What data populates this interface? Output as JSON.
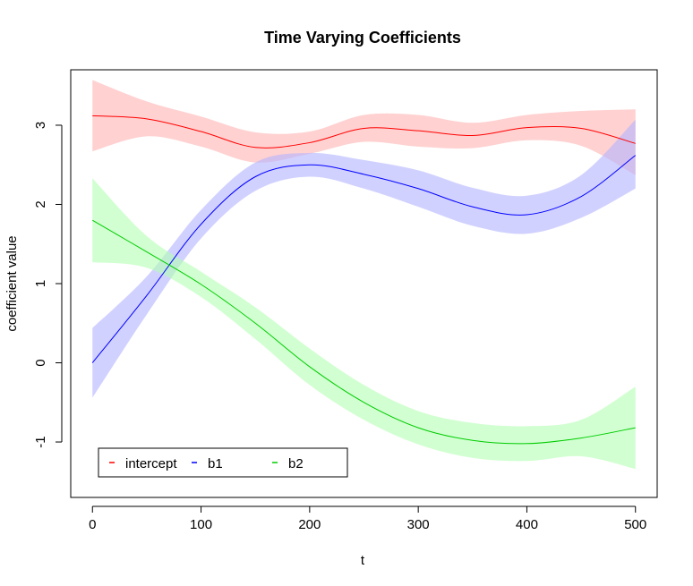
{
  "chart_data": {
    "type": "line",
    "title": "Time Varying Coefficients",
    "xlabel": "t",
    "ylabel": "coefficient value",
    "xlim": [
      -20,
      520
    ],
    "ylim": [
      -1.7,
      3.7
    ],
    "x_ticks": [
      0,
      100,
      200,
      300,
      400,
      500
    ],
    "x_tick_labels": [
      "0",
      "100",
      "200",
      "300",
      "400",
      "500"
    ],
    "y_ticks": [
      -1,
      0,
      1,
      2,
      3
    ],
    "y_tick_labels": [
      "-1",
      "0",
      "1",
      "2",
      "3"
    ],
    "legend_position": "bottom-left",
    "grid": false,
    "series": [
      {
        "name": "intercept",
        "color": "#ff0000",
        "band_color": "#ffb3b3",
        "x": [
          0,
          50,
          100,
          150,
          200,
          250,
          300,
          350,
          400,
          450,
          500
        ],
        "y": [
          3.12,
          3.08,
          2.92,
          2.72,
          2.78,
          2.96,
          2.93,
          2.87,
          2.97,
          2.96,
          2.77
        ],
        "lower": [
          2.67,
          2.86,
          2.73,
          2.53,
          2.64,
          2.79,
          2.73,
          2.71,
          2.81,
          2.74,
          2.37
        ],
        "upper": [
          3.57,
          3.3,
          3.11,
          2.91,
          2.92,
          3.13,
          3.13,
          3.03,
          3.13,
          3.18,
          3.2
        ]
      },
      {
        "name": "b1",
        "color": "#0000ff",
        "band_color": "#b3b3ff",
        "x": [
          0,
          50,
          100,
          150,
          200,
          250,
          300,
          350,
          400,
          450,
          500
        ],
        "y": [
          0.0,
          0.85,
          1.75,
          2.35,
          2.5,
          2.38,
          2.2,
          1.97,
          1.87,
          2.1,
          2.62
        ],
        "lower": [
          -0.44,
          0.61,
          1.57,
          2.17,
          2.35,
          2.2,
          1.97,
          1.73,
          1.63,
          1.83,
          2.2
        ],
        "upper": [
          0.44,
          1.09,
          1.93,
          2.53,
          2.65,
          2.56,
          2.43,
          2.21,
          2.11,
          2.37,
          3.07
        ]
      },
      {
        "name": "b2",
        "color": "#00cc00",
        "band_color": "#b3ffb3",
        "x": [
          0,
          50,
          100,
          150,
          200,
          250,
          300,
          350,
          400,
          450,
          500
        ],
        "y": [
          1.8,
          1.4,
          0.99,
          0.5,
          -0.05,
          -0.5,
          -0.82,
          -0.98,
          -1.02,
          -0.95,
          -0.82
        ],
        "lower": [
          1.27,
          1.2,
          0.83,
          0.3,
          -0.28,
          -0.72,
          -1.03,
          -1.2,
          -1.24,
          -1.18,
          -1.34
        ],
        "upper": [
          2.33,
          1.6,
          1.15,
          0.7,
          0.18,
          -0.28,
          -0.61,
          -0.76,
          -0.8,
          -0.72,
          -0.3
        ]
      }
    ]
  }
}
